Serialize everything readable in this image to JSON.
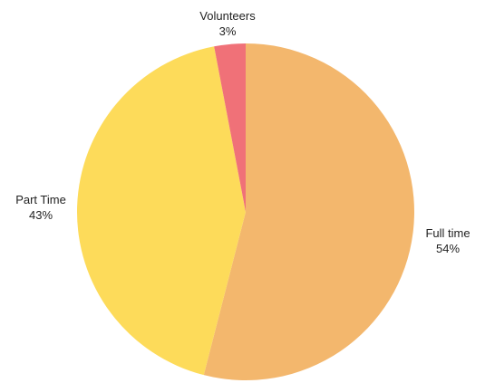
{
  "chart_data": {
    "type": "pie",
    "title": "",
    "slices": [
      {
        "label": "Full time",
        "value": 54,
        "display": "54%",
        "color": "#f3b76d"
      },
      {
        "label": "Part Time",
        "value": 43,
        "display": "43%",
        "color": "#fddb5a"
      },
      {
        "label": "Volunteers",
        "value": 3,
        "display": "3%",
        "color": "#f07178"
      }
    ],
    "start": "12 o'clock",
    "direction": "clockwise",
    "legend": "none",
    "labels": "outside"
  }
}
